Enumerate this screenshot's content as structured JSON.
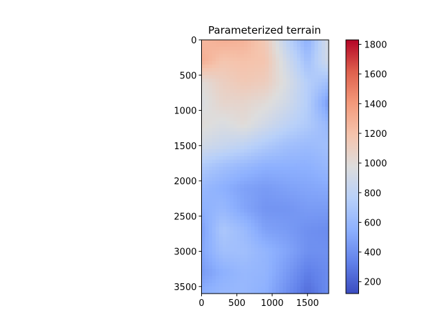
{
  "chart_data": {
    "type": "heatmap",
    "title": "Parameterized terrain",
    "xlabel": "",
    "ylabel": "",
    "x_ticks": [
      0,
      500,
      1000,
      1500
    ],
    "y_ticks": [
      0,
      500,
      1000,
      1500,
      2000,
      2500,
      3000,
      3500
    ],
    "xlim": [
      0,
      1800
    ],
    "ylim": [
      3600,
      0
    ],
    "colormap": "coolwarm",
    "colorbar": {
      "ticks": [
        200,
        400,
        600,
        800,
        1000,
        1200,
        1400,
        1600,
        1800
      ],
      "range": [
        120,
        1830
      ]
    },
    "grid": false,
    "legend": "none",
    "x_coords": [
      0,
      300,
      600,
      900,
      1200,
      1500,
      1800
    ],
    "y_coords": [
      0,
      300,
      600,
      900,
      1200,
      1500,
      1800,
      2100,
      2400,
      2700,
      3000,
      3300,
      3600
    ],
    "values": [
      [
        1250,
        1300,
        1280,
        1150,
        800,
        550,
        950
      ],
      [
        1300,
        1180,
        1200,
        1180,
        900,
        650,
        900
      ],
      [
        1000,
        1100,
        1150,
        1120,
        950,
        750,
        650
      ],
      [
        950,
        1050,
        1050,
        1000,
        900,
        750,
        450
      ],
      [
        1000,
        950,
        1000,
        900,
        800,
        720,
        600
      ],
      [
        900,
        850,
        800,
        720,
        650,
        620,
        650
      ],
      [
        720,
        650,
        600,
        550,
        550,
        550,
        600
      ],
      [
        600,
        550,
        480,
        450,
        480,
        500,
        520
      ],
      [
        550,
        600,
        500,
        420,
        420,
        450,
        450
      ],
      [
        480,
        700,
        620,
        480,
        450,
        400,
        380
      ],
      [
        500,
        650,
        650,
        580,
        500,
        400,
        400
      ],
      [
        450,
        550,
        600,
        580,
        450,
        320,
        380
      ],
      [
        550,
        600,
        600,
        550,
        400,
        250,
        380
      ]
    ]
  }
}
